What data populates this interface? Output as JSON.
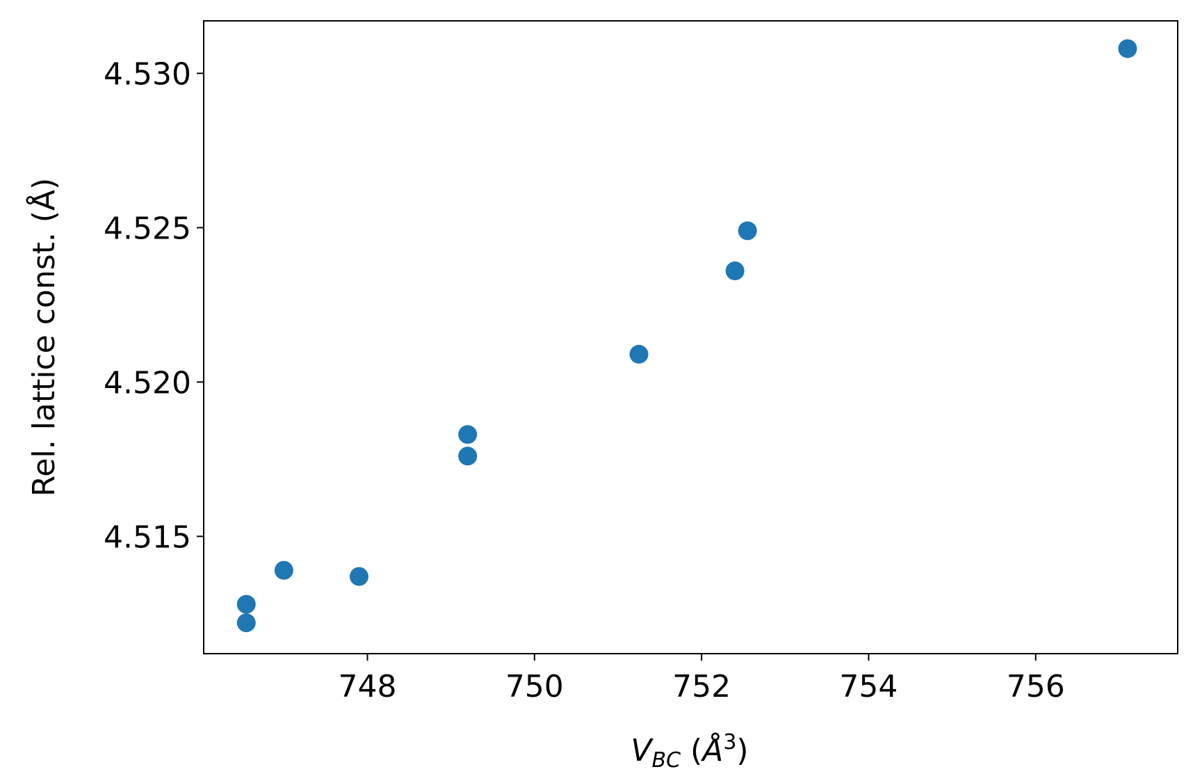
{
  "chart_data": {
    "type": "scatter",
    "xlabel": {
      "main": "V",
      "sub": "BC",
      "unit_open": " (",
      "unit": "Å",
      "sup": "3",
      "unit_close": ")"
    },
    "ylabel": "Rel. lattice const. (Å)",
    "x": [
      746.55,
      746.55,
      747.0,
      747.9,
      749.2,
      749.2,
      751.25,
      752.4,
      752.55,
      757.1
    ],
    "y": [
      4.5122,
      4.5128,
      4.5139,
      4.5137,
      4.5176,
      4.5183,
      4.5209,
      4.5236,
      4.5249,
      4.5308
    ],
    "xlim": [
      746.04,
      757.7
    ],
    "ylim": [
      4.5112,
      4.5317
    ],
    "xticks": [
      748,
      750,
      752,
      754,
      756
    ],
    "xtick_labels": [
      "748",
      "750",
      "752",
      "754",
      "756"
    ],
    "yticks": [
      4.515,
      4.52,
      4.525,
      4.53
    ],
    "ytick_labels": [
      "4.515",
      "4.520",
      "4.525",
      "4.530"
    ],
    "marker_color": "#1f77b4",
    "grid": false,
    "legend": false
  }
}
